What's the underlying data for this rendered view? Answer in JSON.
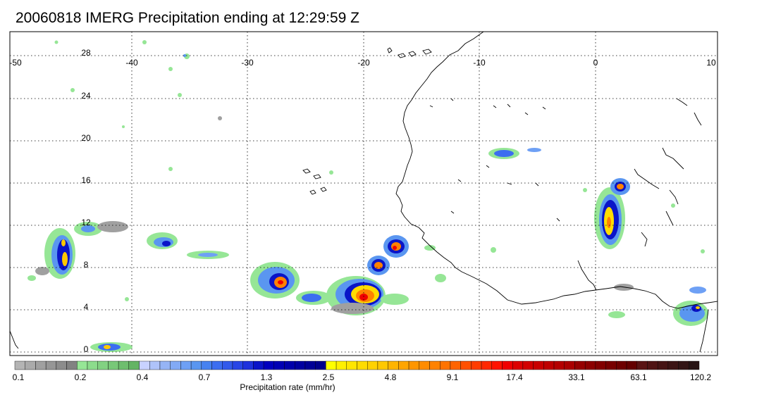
{
  "title": "20060818 IMERG Precipitation ending at 12:29:59 Z",
  "longitude_labels": [
    "-50",
    "-40",
    "-30",
    "-20",
    "-10",
    "0",
    "10"
  ],
  "latitude_labels": [
    "28",
    "24",
    "20",
    "16",
    "12",
    "8",
    "4",
    "0"
  ],
  "colorbar": {
    "title": "Precipitation rate (mm/hr)",
    "tick_labels": [
      "0.1",
      "0.2",
      "0.4",
      "0.7",
      "1.3",
      "2.5",
      "4.8",
      "9.1",
      "17.4",
      "33.1",
      "63.1",
      "120.2"
    ],
    "colors": [
      "#b4b4b4",
      "#aaaaaa",
      "#a0a0a0",
      "#969696",
      "#8c8c8c",
      "#828282",
      "#96e696",
      "#8cdc8c",
      "#82d282",
      "#78c878",
      "#6ebe6e",
      "#64b464",
      "#c8d2ff",
      "#afc3fa",
      "#96b4f5",
      "#82aaf5",
      "#6ea0f5",
      "#5a96f0",
      "#4682f0",
      "#3c6ef0",
      "#325aeb",
      "#2846e6",
      "#1e32dc",
      "#0a14c8",
      "#0000be",
      "#0000b4",
      "#0000aa",
      "#0000a0",
      "#000096",
      "#00008c",
      "#ffff00",
      "#fff000",
      "#ffe600",
      "#ffdc00",
      "#ffd200",
      "#ffc800",
      "#ffb400",
      "#ffa500",
      "#ff9600",
      "#ff8c00",
      "#ff8200",
      "#ff7300",
      "#ff6400",
      "#ff5000",
      "#ff3c00",
      "#ff2800",
      "#ff1400",
      "#f00000",
      "#dc0000",
      "#d20000",
      "#c80000",
      "#be0000",
      "#b40000",
      "#aa0000",
      "#960000",
      "#8c0000",
      "#820000",
      "#780000",
      "#6e0000",
      "#640000",
      "#5a1414",
      "#501414",
      "#461414",
      "#3c1414",
      "#321414",
      "#281414"
    ]
  },
  "map": {
    "lon_range": [
      -50,
      10
    ],
    "lat_range": [
      -0.5,
      30
    ],
    "grid": true
  }
}
